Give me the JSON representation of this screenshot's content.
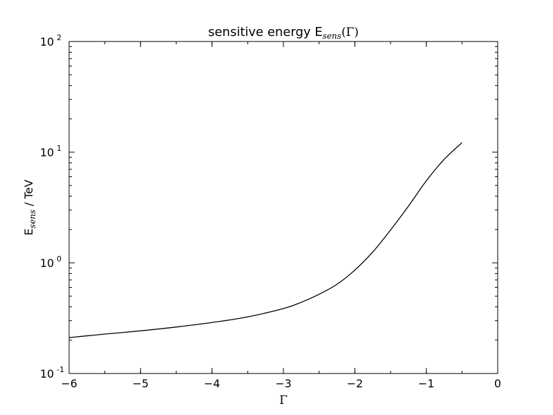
{
  "chart_data": {
    "type": "line",
    "title": {
      "text": "sensitive energy E",
      "subscript": "sens",
      "suffix": "(Γ)"
    },
    "xlabel": "Γ",
    "ylabel": {
      "text": "E",
      "subscript": "sens",
      "suffix": " / TeV"
    },
    "xlim": [
      -6,
      0
    ],
    "ylim": [
      0.1,
      100
    ],
    "yscale": "log",
    "x_ticks": [
      {
        "value": -6,
        "label": "−6"
      },
      {
        "value": -5,
        "label": "−5"
      },
      {
        "value": -4,
        "label": "−4"
      },
      {
        "value": -3,
        "label": "−3"
      },
      {
        "value": -2,
        "label": "−2"
      },
      {
        "value": -1,
        "label": "−1"
      },
      {
        "value": 0,
        "label": "0"
      }
    ],
    "y_ticks": [
      {
        "value": 0.1,
        "base": "10",
        "exp": "-1"
      },
      {
        "value": 1,
        "base": "10",
        "exp": "0"
      },
      {
        "value": 10,
        "base": "10",
        "exp": "1"
      },
      {
        "value": 100,
        "base": "10",
        "exp": "2"
      }
    ],
    "grid": false,
    "line_color": "#000000",
    "series": [
      {
        "x": [
          -6.0,
          -5.5,
          -5.0,
          -4.5,
          -4.0,
          -3.5,
          -3.0,
          -2.75,
          -2.5,
          -2.25,
          -2.0,
          -1.75,
          -1.5,
          -1.25,
          -1.0,
          -0.75,
          -0.5
        ],
        "y": [
          0.211,
          0.227,
          0.243,
          0.263,
          0.289,
          0.325,
          0.386,
          0.44,
          0.52,
          0.64,
          0.86,
          1.25,
          1.98,
          3.25,
          5.5,
          8.6,
          12.2
        ]
      }
    ]
  }
}
